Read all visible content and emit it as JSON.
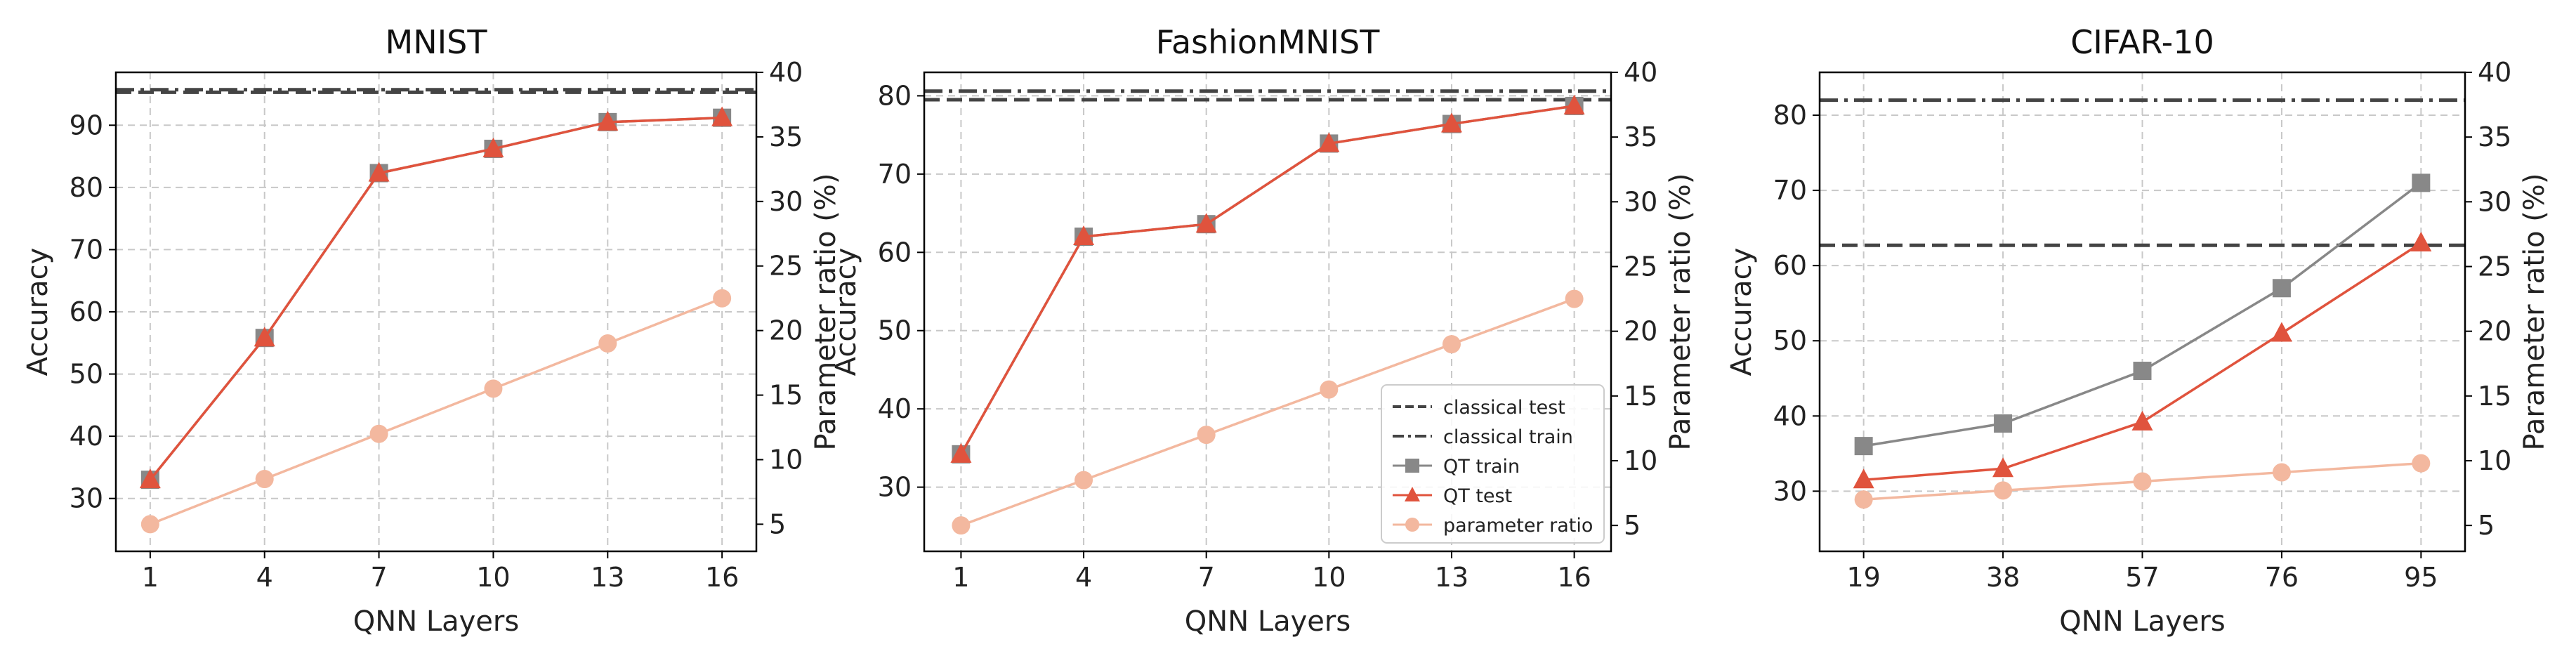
{
  "colors": {
    "qt_train": "#888888",
    "qt_test": "#e0533d",
    "param_ratio": "#f3b89f",
    "classical": "#444444",
    "grid": "#c8c8c8"
  },
  "legend_items": [
    {
      "key": "classical_test",
      "label": "classical test",
      "style": "dashed"
    },
    {
      "key": "classical_train",
      "label": "classical train",
      "style": "dashdot"
    },
    {
      "key": "qt_train",
      "label": "QT train",
      "marker": "square"
    },
    {
      "key": "qt_test",
      "label": "QT test",
      "marker": "triangle"
    },
    {
      "key": "param_ratio",
      "label": "parameter ratio",
      "marker": "circle"
    }
  ],
  "chart_data": [
    {
      "type": "line",
      "title": "MNIST",
      "xlabel": "QNN Layers",
      "ylabel": "Accuracy",
      "y2label": "Parameter ratio (%)",
      "categories": [
        "1",
        "4",
        "7",
        "10",
        "13",
        "16"
      ],
      "x": [
        1,
        4,
        7,
        10,
        13,
        16
      ],
      "xlim": [
        0.1,
        16.9
      ],
      "ylim": [
        21.5,
        98.5
      ],
      "yticks": [
        30,
        40,
        50,
        60,
        70,
        80,
        90
      ],
      "y2lim": [
        2.9,
        40.0
      ],
      "y2ticks": [
        5,
        10,
        15,
        20,
        25,
        30,
        35,
        40
      ],
      "grid": true,
      "legend_shown": false,
      "hlines": [
        {
          "name": "classical test",
          "y": 95.3,
          "style": "dashed"
        },
        {
          "name": "classical train",
          "y": 95.7,
          "style": "dashdot"
        }
      ],
      "series": [
        {
          "name": "QT train",
          "axis": "left",
          "marker": "square",
          "values": [
            33,
            55.8,
            82.3,
            86.2,
            90.5,
            91.2
          ]
        },
        {
          "name": "QT test",
          "axis": "left",
          "marker": "triangle",
          "values": [
            33,
            55.8,
            82.3,
            86.2,
            90.5,
            91.2
          ]
        },
        {
          "name": "parameter ratio",
          "axis": "right",
          "marker": "circle",
          "values": [
            5.0,
            8.5,
            12.0,
            15.5,
            19.0,
            22.5
          ]
        }
      ]
    },
    {
      "type": "line",
      "title": "FashionMNIST",
      "xlabel": "QNN Layers",
      "ylabel": "Accuracy",
      "y2label": "Parameter ratio (%)",
      "categories": [
        "1",
        "4",
        "7",
        "10",
        "13",
        "16"
      ],
      "x": [
        1,
        4,
        7,
        10,
        13,
        16
      ],
      "xlim": [
        0.1,
        16.9
      ],
      "ylim": [
        21.8,
        83.0
      ],
      "yticks": [
        30,
        40,
        50,
        60,
        70,
        80
      ],
      "y2lim": [
        3.0,
        40.0
      ],
      "y2ticks": [
        5,
        10,
        15,
        20,
        25,
        30,
        35,
        40
      ],
      "grid": true,
      "legend_shown": true,
      "legend_position": "lower right",
      "hlines": [
        {
          "name": "classical test",
          "y": 79.5,
          "style": "dashed"
        },
        {
          "name": "classical train",
          "y": 80.6,
          "style": "dashdot"
        }
      ],
      "series": [
        {
          "name": "QT train",
          "axis": "left",
          "marker": "square",
          "values": [
            34.2,
            62.0,
            63.6,
            73.9,
            76.4,
            78.7
          ]
        },
        {
          "name": "QT test",
          "axis": "left",
          "marker": "triangle",
          "values": [
            34.2,
            62.0,
            63.6,
            73.9,
            76.4,
            78.7
          ]
        },
        {
          "name": "parameter ratio",
          "axis": "right",
          "marker": "circle",
          "values": [
            5.0,
            8.5,
            12.0,
            15.5,
            19.0,
            22.5
          ]
        }
      ]
    },
    {
      "type": "line",
      "title": "CIFAR-10",
      "xlabel": "QNN Layers",
      "ylabel": "Accuracy",
      "y2label": "Parameter ratio (%)",
      "categories": [
        "19",
        "38",
        "57",
        "76",
        "95"
      ],
      "x": [
        19,
        38,
        57,
        76,
        95
      ],
      "xlim": [
        13.0,
        101.0
      ],
      "ylim": [
        22.0,
        85.7
      ],
      "yticks": [
        30,
        40,
        50,
        60,
        70,
        80
      ],
      "y2lim": [
        3.0,
        40.0
      ],
      "y2ticks": [
        5,
        10,
        15,
        20,
        25,
        30,
        35,
        40
      ],
      "grid": true,
      "legend_shown": false,
      "hlines": [
        {
          "name": "classical test",
          "y": 62.7,
          "style": "dashed"
        },
        {
          "name": "classical train",
          "y": 82.0,
          "style": "dashdot"
        }
      ],
      "series": [
        {
          "name": "QT train",
          "axis": "left",
          "marker": "square",
          "values": [
            36.0,
            39.0,
            46.0,
            57.0,
            71.0
          ]
        },
        {
          "name": "QT test",
          "axis": "left",
          "marker": "triangle",
          "values": [
            31.5,
            33.0,
            39.2,
            51.0,
            63.0
          ]
        },
        {
          "name": "parameter ratio",
          "axis": "right",
          "marker": "circle",
          "values": [
            7.0,
            7.7,
            8.4,
            9.1,
            9.8
          ]
        }
      ]
    }
  ]
}
